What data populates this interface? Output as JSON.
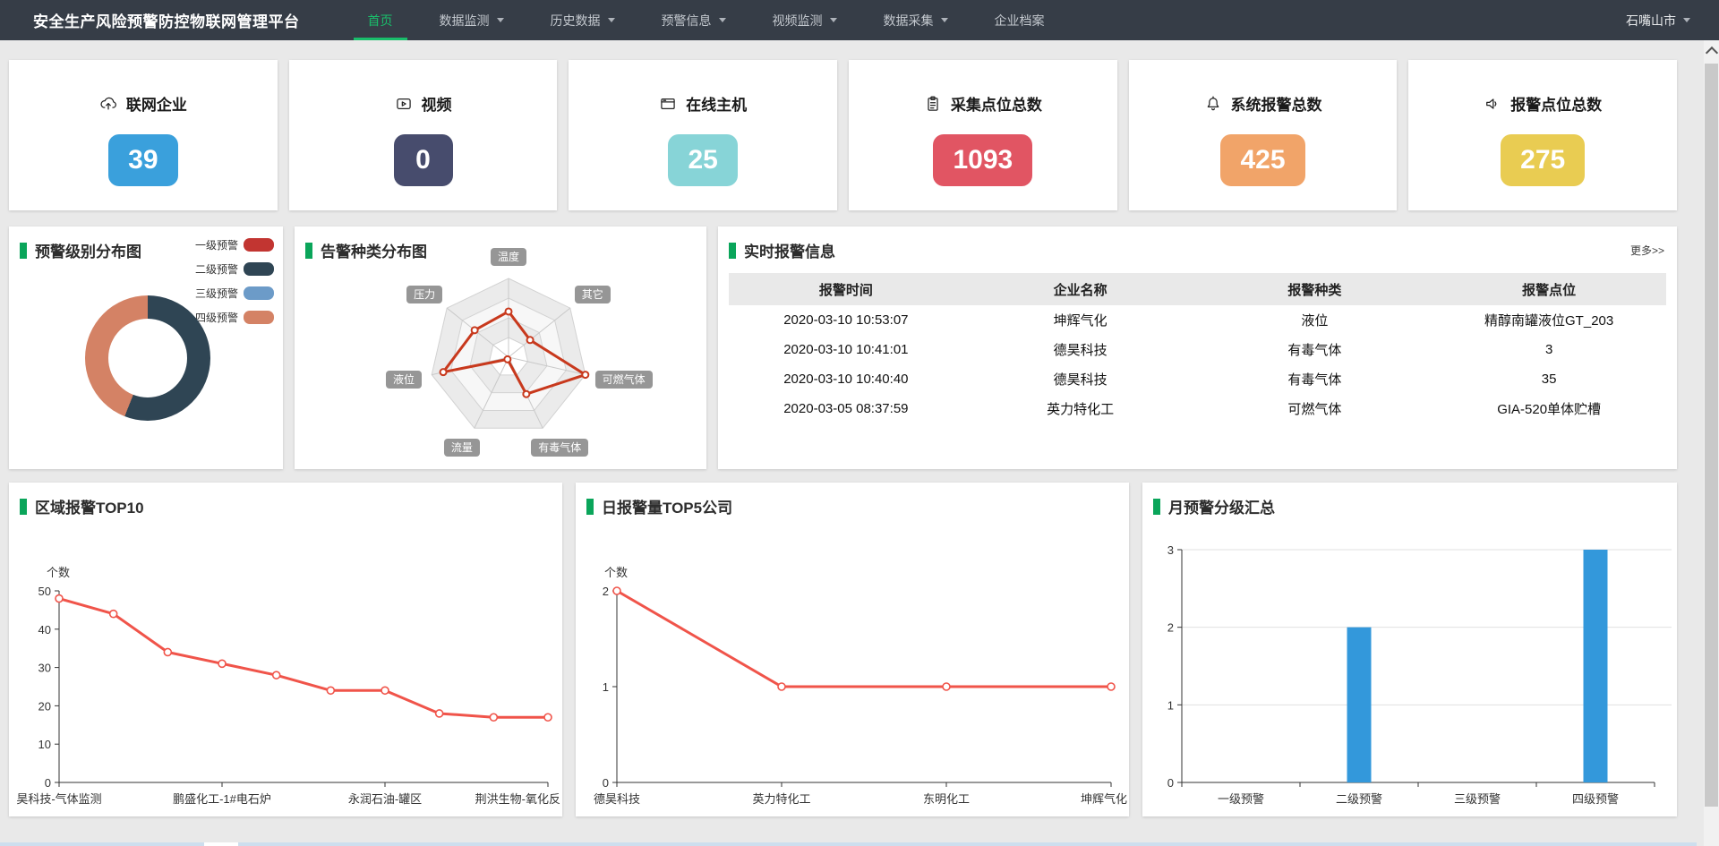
{
  "nav": {
    "title": "安全生产风险预警防控物联网管理平台",
    "items": [
      {
        "label": "首页",
        "active": true
      },
      {
        "label": "数据监测"
      },
      {
        "label": "历史数据"
      },
      {
        "label": "预警信息"
      },
      {
        "label": "视频监测"
      },
      {
        "label": "数据采集"
      },
      {
        "label": "企业档案"
      }
    ],
    "city": "石嘴山市"
  },
  "stat_cards": [
    {
      "label": "联网企业",
      "value": "39",
      "color": "#3aa0dc",
      "icon": "cloud-upload-icon"
    },
    {
      "label": "视频",
      "value": "0",
      "color": "#474c6d",
      "icon": "video-icon"
    },
    {
      "label": "在线主机",
      "value": "25",
      "color": "#87d4d7",
      "icon": "monitor-icon"
    },
    {
      "label": "采集点位总数",
      "value": "1093",
      "color": "#e15563",
      "icon": "clipboard-icon"
    },
    {
      "label": "系统报警总数",
      "value": "425",
      "color": "#f1a469",
      "icon": "bell-icon"
    },
    {
      "label": "报警点位总数",
      "value": "275",
      "color": "#e9cc52",
      "icon": "speaker-icon"
    }
  ],
  "alarm_table": {
    "title": "实时报警信息",
    "more_label": "更多>>",
    "columns": [
      "报警时间",
      "企业名称",
      "报警种类",
      "报警点位"
    ],
    "rows": [
      [
        "2020-03-10 10:53:07",
        "坤辉气化",
        "液位",
        "精醇南罐液位GT_203"
      ],
      [
        "2020-03-10 10:41:01",
        "德昊科技",
        "有毒气体",
        "3"
      ],
      [
        "2020-03-10 10:40:40",
        "德昊科技",
        "有毒气体",
        "35"
      ],
      [
        "2020-03-05 08:37:59",
        "英力特化工",
        "可燃气体",
        "GIA-520单体贮槽"
      ]
    ]
  },
  "chart_data": [
    {
      "id": "level_donut",
      "type": "pie",
      "title": "预警级别分布图",
      "slices": [
        {
          "name": "一级预警",
          "pct": 0,
          "color": "#c23531"
        },
        {
          "name": "二级预警",
          "pct": 56,
          "color": "#2f4554"
        },
        {
          "name": "三级预警",
          "pct": 0,
          "color": "#6c9bc8"
        },
        {
          "name": "四级预警",
          "pct": 44,
          "color": "#d48265"
        }
      ],
      "legend_position": "right"
    },
    {
      "id": "alarm_radar",
      "type": "radar",
      "title": "告警种类分布图",
      "axes": [
        "温度",
        "其它",
        "可燃气体",
        "有毒气体",
        "流量",
        "液位",
        "压力"
      ],
      "values_pct": [
        58,
        35,
        100,
        52,
        3,
        85,
        55
      ],
      "rings": 4,
      "line_color": "#c8391d"
    },
    {
      "id": "region_top10",
      "type": "line",
      "title": "区域报警TOP10",
      "ylabel": "个数",
      "ylim": [
        0,
        50
      ],
      "yticks": [
        0,
        10,
        20,
        30,
        40,
        50
      ],
      "values": [
        48,
        44,
        34,
        31,
        28,
        24,
        24,
        18,
        17,
        17
      ],
      "x_tick_labels": [
        "昊科技-气体监测",
        "鹏盛化工-1#电石炉",
        "永润石油-罐区",
        "荆洪生物-氧化反"
      ],
      "x_tick_indices": [
        0,
        3,
        6,
        9
      ],
      "line_color": "#f0544a",
      "grid": false
    },
    {
      "id": "daily_top5",
      "type": "line",
      "title": "日报警量TOP5公司",
      "ylabel": "个数",
      "ylim": [
        0,
        2
      ],
      "yticks": [
        0,
        1,
        2
      ],
      "categories": [
        "德昊科技",
        "英力特化工",
        "东明化工",
        "坤辉气化"
      ],
      "values": [
        2,
        1,
        1,
        1
      ],
      "line_color": "#f0544a",
      "grid": false
    },
    {
      "id": "monthly_levels",
      "type": "bar",
      "title": "月预警分级汇总",
      "ylim": [
        0,
        3
      ],
      "yticks": [
        0,
        1,
        2,
        3
      ],
      "categories": [
        "一级预警",
        "二级预警",
        "三级预警",
        "四级预警"
      ],
      "values": [
        0,
        2,
        0,
        3
      ],
      "bar_color": "#3398db",
      "grid": true
    }
  ]
}
